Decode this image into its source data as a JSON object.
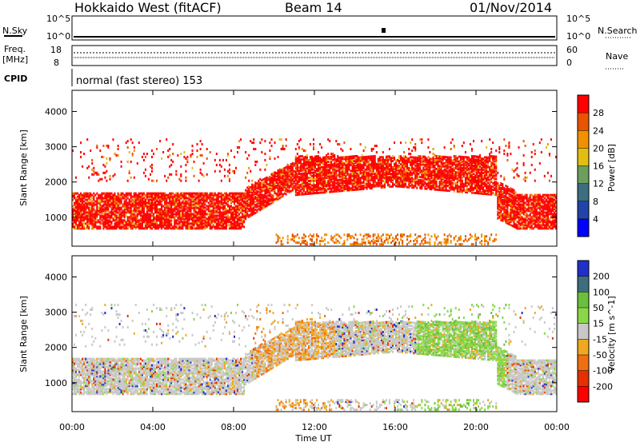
{
  "header": {
    "station": "Hokkaido West (fitACF)",
    "beam": "Beam 14",
    "date": "01/Nov/2014"
  },
  "strips": {
    "nsky_label": "N.Sky",
    "nsearch_label": "N.Search",
    "freq_label_1": "Freq.",
    "freq_label_2": "[MHz]",
    "nave_label": "Nave",
    "cpid_label": "CPID",
    "cpid_text": "normal (fast stereo) 153",
    "noise_ticks_left": [
      "10^5",
      "10^0"
    ],
    "noise_ticks_right": [
      "10^5",
      "10^0"
    ],
    "freq_ticks": [
      "18",
      "8"
    ],
    "nave_ticks": [
      "60",
      "0"
    ]
  },
  "xaxis": {
    "label": "Time UT",
    "ticks": [
      "00:00",
      "04:00",
      "08:00",
      "12:00",
      "16:00",
      "20:00",
      "00:00"
    ]
  },
  "chart_data": [
    {
      "type": "heatmap",
      "ylabel": "Slant Range [km]",
      "x_range_hours": [
        0,
        24
      ],
      "ylim": [
        180,
        4600
      ],
      "yticks": [
        1000,
        2000,
        3000,
        4000
      ],
      "colorbar": {
        "label": "Power [dB]",
        "ticks": [
          "28",
          "24",
          "20",
          "16",
          "12",
          "8",
          "4"
        ],
        "colors": [
          "#ff0000",
          "#e85400",
          "#f29000",
          "#e2be10",
          "#6c9e5e",
          "#3c6e80",
          "#2244aa",
          "#0000ff"
        ]
      },
      "regions": [
        {
          "from_h": 0,
          "to_h": 8,
          "range_km": [
            700,
            1600
          ],
          "dominant": "28+ dB"
        },
        {
          "from_h": 9.5,
          "to_h": 21,
          "range_km": [
            1800,
            2700
          ],
          "dominant": "28+ dB"
        },
        {
          "from_h": 0,
          "to_h": 24,
          "range_km": [
            2000,
            3100
          ],
          "dominant": "scattered"
        }
      ]
    },
    {
      "type": "heatmap",
      "ylabel": "Slant Range [km]",
      "x_range_hours": [
        0,
        24
      ],
      "ylim": [
        180,
        4600
      ],
      "yticks": [
        1000,
        2000,
        3000,
        4000
      ],
      "colorbar": {
        "label": "Velocity [m s^-1]",
        "ticks": [
          "200",
          "100",
          "50",
          "15",
          "-15",
          "-50",
          "-100",
          "-200"
        ],
        "colors": [
          "#2030c8",
          "#3c6e80",
          "#6cbf3c",
          "#8ad848",
          "#c8c8c8",
          "#f0a820",
          "#ee7010",
          "#e63000",
          "#ff0000"
        ]
      },
      "regions": [
        {
          "from_h": 0,
          "to_h": 8,
          "range_km": [
            700,
            1600
          ],
          "dominant": "-15 to 15 (grey)"
        },
        {
          "from_h": 9,
          "to_h": 17,
          "range_km": [
            1800,
            2700
          ],
          "dominant": "mixed grey / -15 to -50"
        },
        {
          "from_h": 17,
          "to_h": 21,
          "range_km": [
            1500,
            2700
          ],
          "dominant": "15 to 50 (green)"
        }
      ]
    }
  ]
}
